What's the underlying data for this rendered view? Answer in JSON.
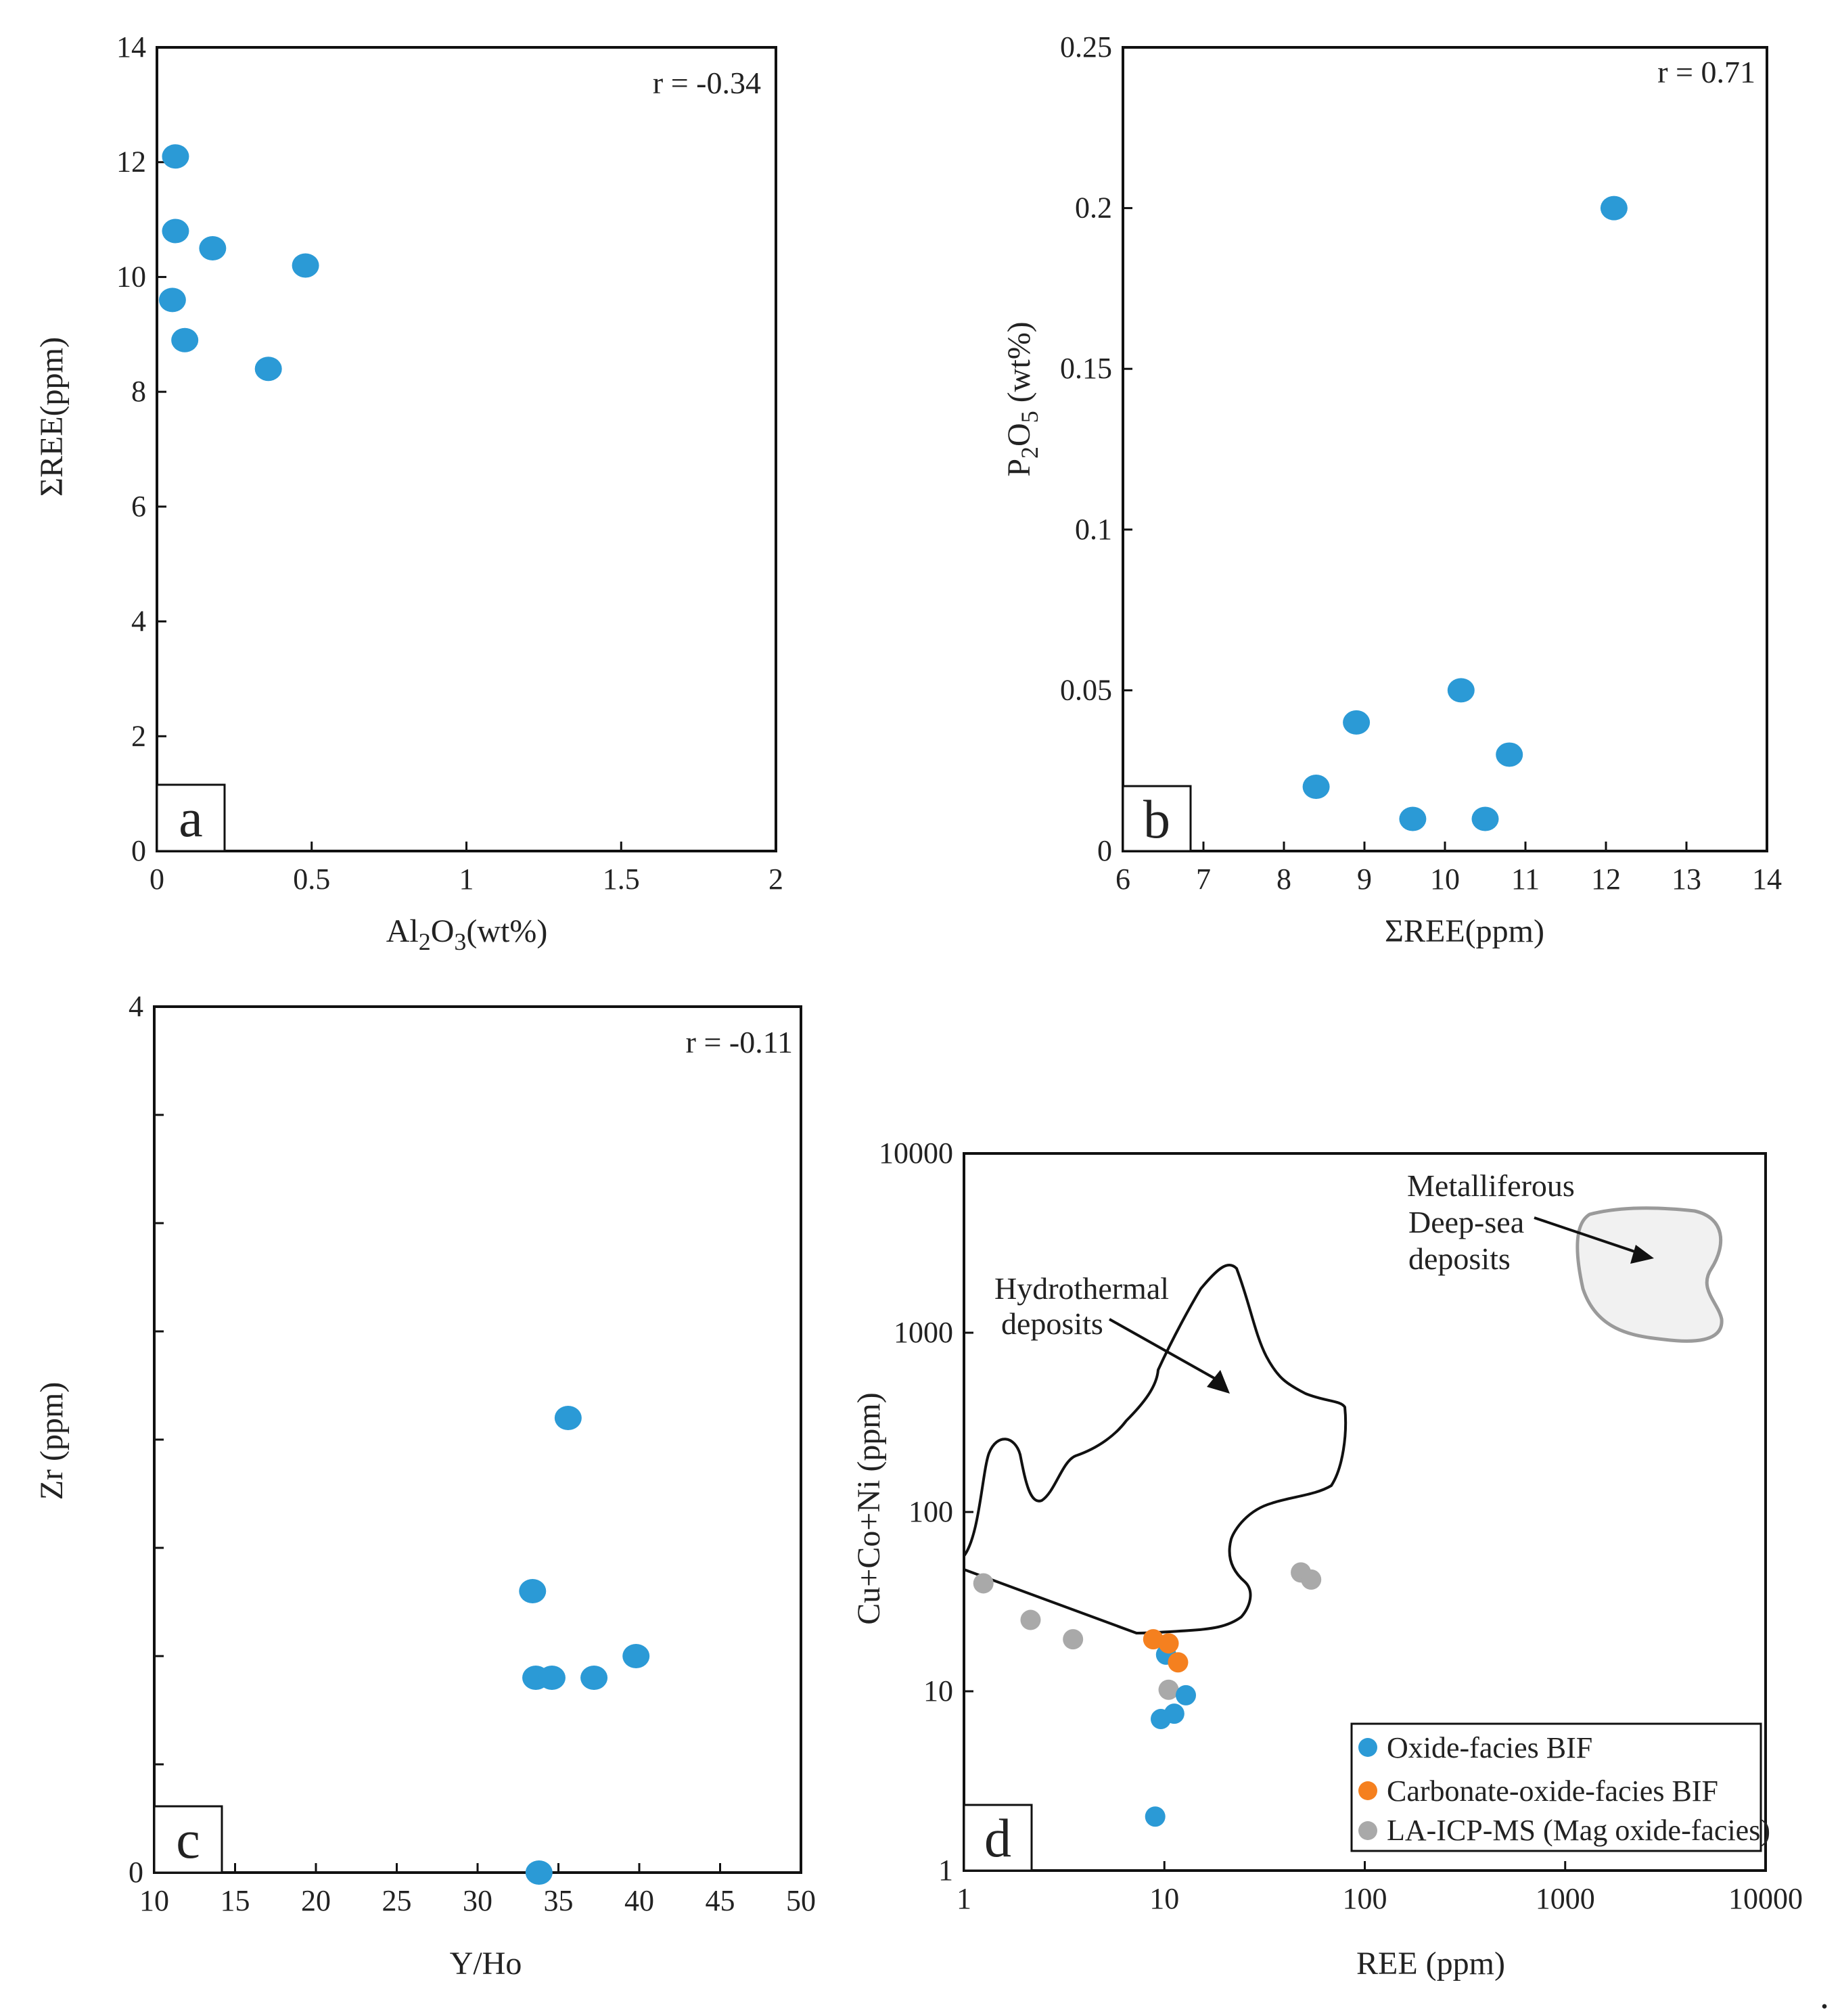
{
  "colors": {
    "oxide": "#2b9ad6",
    "carbonate": "#f5801f",
    "laicpms": "#a9a9a9",
    "axis": "#111111",
    "field_fill": "#f1f1f1",
    "field_stroke": "#9a9a9a"
  },
  "chart_data": [
    {
      "panel": "a",
      "type": "scatter",
      "xlabel": "Al2O3(wt%)",
      "ylabel": "ΣREE(ppm)",
      "xlim": [
        0,
        2
      ],
      "ylim": [
        0,
        14
      ],
      "xticks": [
        "0",
        "0.5",
        "1",
        "1.5",
        "2"
      ],
      "yticks": [
        "0",
        "2",
        "4",
        "6",
        "8",
        "10",
        "12",
        "14"
      ],
      "r_label": "r = -0.34",
      "points": [
        {
          "x": 0.06,
          "y": 12.1
        },
        {
          "x": 0.06,
          "y": 10.8
        },
        {
          "x": 0.18,
          "y": 10.5
        },
        {
          "x": 0.48,
          "y": 10.2
        },
        {
          "x": 0.05,
          "y": 9.6
        },
        {
          "x": 0.09,
          "y": 8.9
        },
        {
          "x": 0.36,
          "y": 8.4
        }
      ]
    },
    {
      "panel": "b",
      "type": "scatter",
      "xlabel": "ΣREE(ppm)",
      "ylabel": "P2O5 (wt%)",
      "xlim": [
        6,
        14
      ],
      "ylim": [
        0,
        0.25
      ],
      "xticks": [
        "6",
        "7",
        "8",
        "9",
        "10",
        "11",
        "12",
        "13",
        "14"
      ],
      "yticks": [
        "0",
        "0.05",
        "0.1",
        "0.15",
        "0.2",
        "0.25"
      ],
      "r_label": "r = 0.71",
      "points": [
        {
          "x": 12.1,
          "y": 0.2
        },
        {
          "x": 10.2,
          "y": 0.05
        },
        {
          "x": 8.9,
          "y": 0.04
        },
        {
          "x": 10.8,
          "y": 0.03
        },
        {
          "x": 8.4,
          "y": 0.02
        },
        {
          "x": 9.6,
          "y": 0.01
        },
        {
          "x": 10.5,
          "y": 0.01
        }
      ]
    },
    {
      "panel": "c",
      "type": "scatter",
      "xlabel": "Y/Ho",
      "ylabel": "Zr (ppm)",
      "xlim": [
        10,
        50
      ],
      "ylim": [
        0,
        4
      ],
      "xticks": [
        "10",
        "15",
        "20",
        "25",
        "30",
        "35",
        "40",
        "45",
        "50"
      ],
      "yticks": [
        "0",
        "4"
      ],
      "r_label": "r = -0.11",
      "points": [
        {
          "x": 35.6,
          "y": 2.1
        },
        {
          "x": 33.4,
          "y": 1.3
        },
        {
          "x": 33.6,
          "y": 0.9
        },
        {
          "x": 34.6,
          "y": 0.9
        },
        {
          "x": 37.2,
          "y": 0.9
        },
        {
          "x": 39.8,
          "y": 1.0
        },
        {
          "x": 33.8,
          "y": 0.0
        }
      ]
    },
    {
      "panel": "d",
      "type": "scatter",
      "scale": "log-log",
      "xlabel": "REE (ppm)",
      "ylabel": "Cu+Co+Ni (ppm)",
      "xlim": [
        1,
        10000
      ],
      "ylim": [
        1,
        10000
      ],
      "xticks": [
        "1",
        "10",
        "100",
        "1000",
        "10000"
      ],
      "yticks": [
        "1",
        "10",
        "100",
        "1000",
        "10000"
      ],
      "fields": [
        {
          "label": "Hydrothermal deposits"
        },
        {
          "label": "Metalliferous Deep-sea deposits"
        }
      ],
      "series": [
        {
          "name": "Oxide-facies BIF",
          "points": [
            {
              "x": 10.2,
              "y": 16
            },
            {
              "x": 12.8,
              "y": 9.5
            },
            {
              "x": 11.2,
              "y": 7.5
            },
            {
              "x": 9.6,
              "y": 7.0
            },
            {
              "x": 9.0,
              "y": 2.0
            }
          ]
        },
        {
          "name": "Carbonate-oxide-facies BIF",
          "points": [
            {
              "x": 8.8,
              "y": 19.5
            },
            {
              "x": 10.5,
              "y": 18.5
            },
            {
              "x": 11.7,
              "y": 14.5
            }
          ]
        },
        {
          "name": "LA-ICP-MS (Mag oxide-facies)",
          "points": [
            {
              "x": 1.25,
              "y": 40
            },
            {
              "x": 2.15,
              "y": 25
            },
            {
              "x": 3.5,
              "y": 19.5
            },
            {
              "x": 10.5,
              "y": 10.2
            },
            {
              "x": 48,
              "y": 46
            },
            {
              "x": 54,
              "y": 42
            }
          ]
        }
      ]
    }
  ]
}
